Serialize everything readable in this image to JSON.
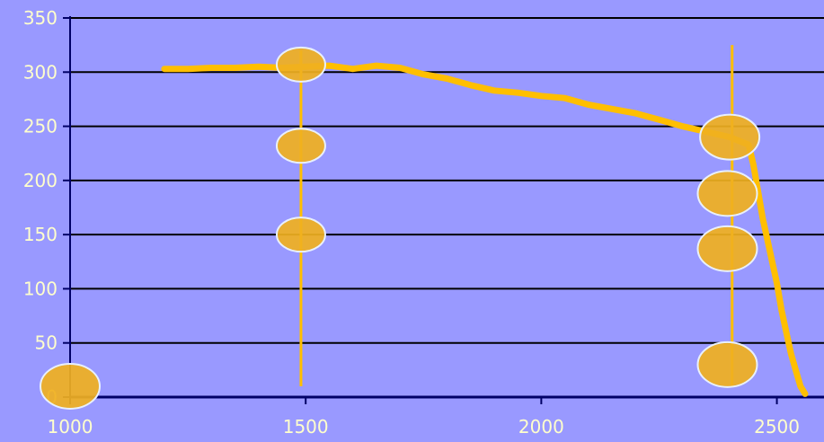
{
  "chart_data": {
    "type": "line",
    "title": "",
    "xlabel": "",
    "ylabel": "",
    "xlim": [
      1000,
      2600
    ],
    "ylim": [
      0,
      350
    ],
    "x_ticks": [
      1000,
      1500,
      2000,
      2500
    ],
    "y_ticks": [
      0,
      50,
      100,
      150,
      200,
      250,
      300,
      350
    ],
    "grid": true,
    "colors": {
      "background": "#9999ff",
      "gridline": "#000000",
      "axis": "#000066",
      "tick_label": "#ffffcc",
      "line": "#ffbf00",
      "marker_fill": "#f0b020",
      "marker_stroke": "#e8f0ff"
    },
    "series": [
      {
        "x": [
          1200,
          1250,
          1300,
          1350,
          1400,
          1450,
          1500,
          1550,
          1600,
          1650,
          1700,
          1750,
          1800,
          1850,
          1900,
          1950,
          2000,
          2050,
          2100,
          2150,
          2200,
          2250,
          2300,
          2350,
          2400,
          2440,
          2450,
          2460,
          2470,
          2480,
          2490,
          2500,
          2510,
          2520,
          2530,
          2540,
          2550,
          2560
        ],
        "y": [
          303,
          303,
          304,
          304,
          305,
          304,
          305,
          306,
          303,
          306,
          304,
          298,
          294,
          288,
          283,
          281,
          278,
          276,
          270,
          266,
          262,
          256,
          250,
          245,
          240,
          233,
          215,
          190,
          165,
          145,
          125,
          105,
          80,
          60,
          40,
          25,
          10,
          3
        ]
      }
    ],
    "vertical_lines": [
      {
        "x": 1490,
        "y_range": [
          10,
          320
        ]
      },
      {
        "x": 2405,
        "y_range": [
          10,
          325
        ]
      }
    ],
    "markers": [
      {
        "x": 1490,
        "y": 307
      },
      {
        "x": 1490,
        "y": 232
      },
      {
        "x": 1490,
        "y": 150
      },
      {
        "x": 2400,
        "y": 240
      },
      {
        "x": 2395,
        "y": 188
      },
      {
        "x": 2395,
        "y": 137
      },
      {
        "x": 2395,
        "y": 30
      },
      {
        "x": 1000,
        "y": 10
      }
    ]
  }
}
